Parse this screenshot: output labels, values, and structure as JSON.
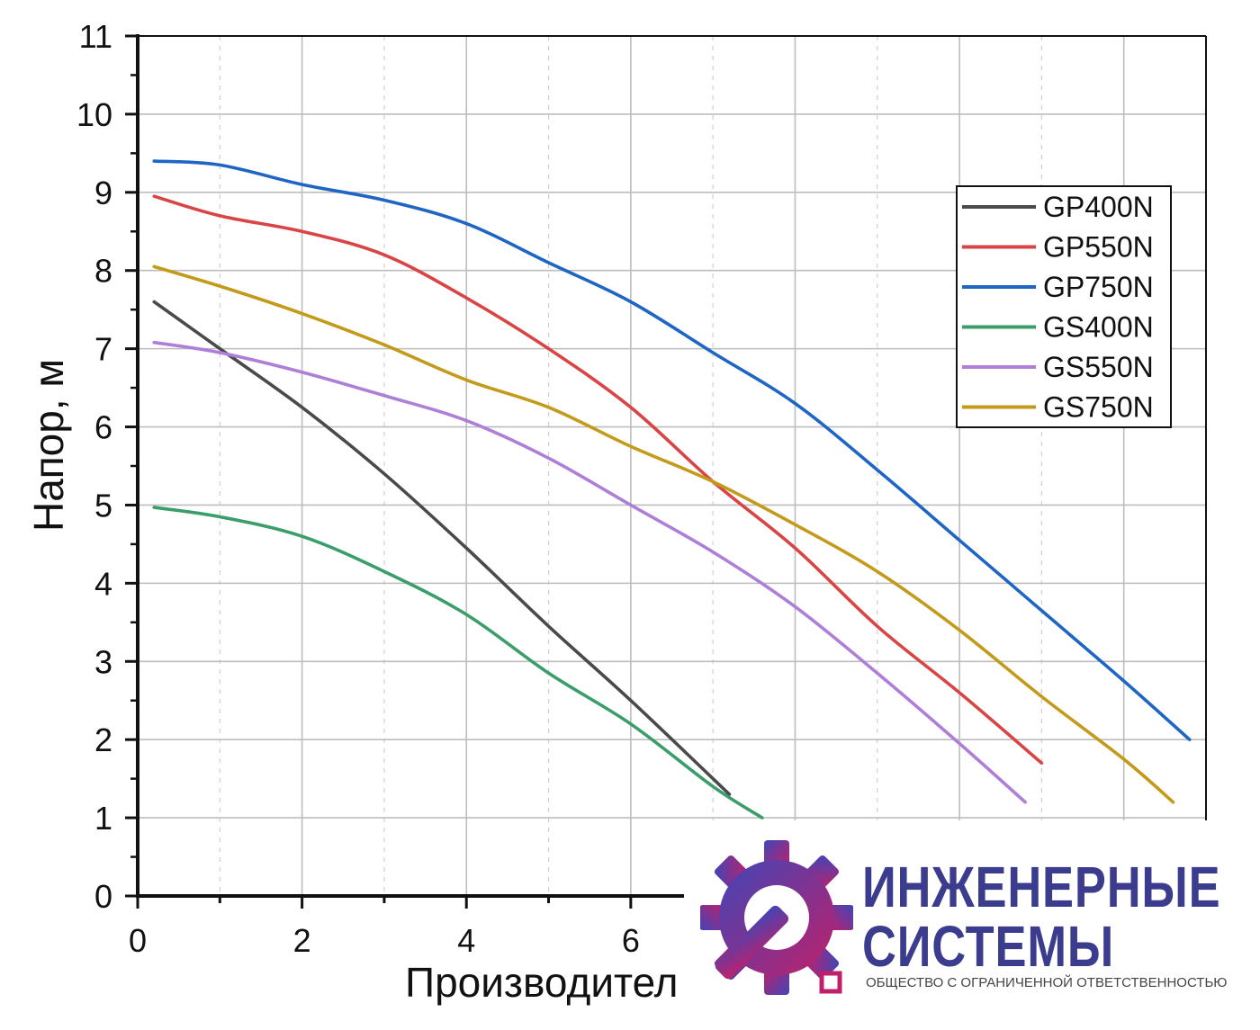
{
  "chart_data": {
    "type": "line",
    "title": "",
    "xlabel": "Производител",
    "ylabel": "Напор, м",
    "xlim": [
      0,
      13
    ],
    "ylim": [
      0,
      11
    ],
    "x_ticks": [
      "0",
      "2",
      "4",
      "6"
    ],
    "y_ticks": [
      "0",
      "1",
      "2",
      "3",
      "4",
      "5",
      "6",
      "7",
      "8",
      "9",
      "10",
      "11"
    ],
    "grid": true,
    "legend_position": "right",
    "series": [
      {
        "name": "GP400N",
        "color": "#4a4a4a",
        "x": [
          0.2,
          1,
          2,
          3,
          4,
          5,
          6,
          7.2
        ],
        "y": [
          7.6,
          7.0,
          6.25,
          5.4,
          4.45,
          3.45,
          2.5,
          1.3
        ]
      },
      {
        "name": "GP550N",
        "color": "#d94545",
        "x": [
          0.2,
          1,
          2,
          3,
          4,
          5,
          6,
          7,
          8,
          9,
          10,
          11
        ],
        "y": [
          8.95,
          8.7,
          8.5,
          8.2,
          7.65,
          7.0,
          6.25,
          5.3,
          4.45,
          3.45,
          2.6,
          1.7
        ]
      },
      {
        "name": "GP750N",
        "color": "#1f66c4",
        "x": [
          0.2,
          1,
          2,
          3,
          4,
          5,
          6,
          7,
          8,
          9,
          10,
          11,
          12,
          12.8
        ],
        "y": [
          9.4,
          9.35,
          9.1,
          8.9,
          8.6,
          8.1,
          7.6,
          6.95,
          6.3,
          5.45,
          4.55,
          3.65,
          2.75,
          2.0
        ]
      },
      {
        "name": "GS400N",
        "color": "#3a9e6a",
        "x": [
          0.2,
          1,
          2,
          3,
          4,
          5,
          6,
          7,
          7.6
        ],
        "y": [
          4.97,
          4.85,
          4.6,
          4.15,
          3.6,
          2.85,
          2.2,
          1.4,
          1.0
        ]
      },
      {
        "name": "GS550N",
        "color": "#ad7fd8",
        "x": [
          0.2,
          1,
          2,
          3,
          4,
          5,
          6,
          7,
          8,
          9,
          10,
          10.8
        ],
        "y": [
          7.08,
          6.95,
          6.7,
          6.4,
          6.08,
          5.6,
          5.0,
          4.4,
          3.7,
          2.85,
          1.95,
          1.2
        ]
      },
      {
        "name": "GS750N",
        "color": "#c49a1a",
        "x": [
          0.2,
          1,
          2,
          3,
          4,
          5,
          6,
          7,
          8,
          9,
          10,
          11,
          12,
          12.6
        ],
        "y": [
          8.05,
          7.8,
          7.45,
          7.05,
          6.6,
          6.25,
          5.75,
          5.3,
          4.75,
          4.15,
          3.4,
          2.55,
          1.75,
          1.2
        ]
      }
    ]
  },
  "watermark": {
    "line1": "ИНЖЕНЕРНЫЕ",
    "line2": "СИСТЕМЫ",
    "subtitle": "ОБЩЕСТВО С ОГРАНИЧЕННОЙ ОТВЕТСТВЕННОСТЬЮ",
    "text_color": "#3b3c8e",
    "icon": "gear-wrench-icon"
  }
}
